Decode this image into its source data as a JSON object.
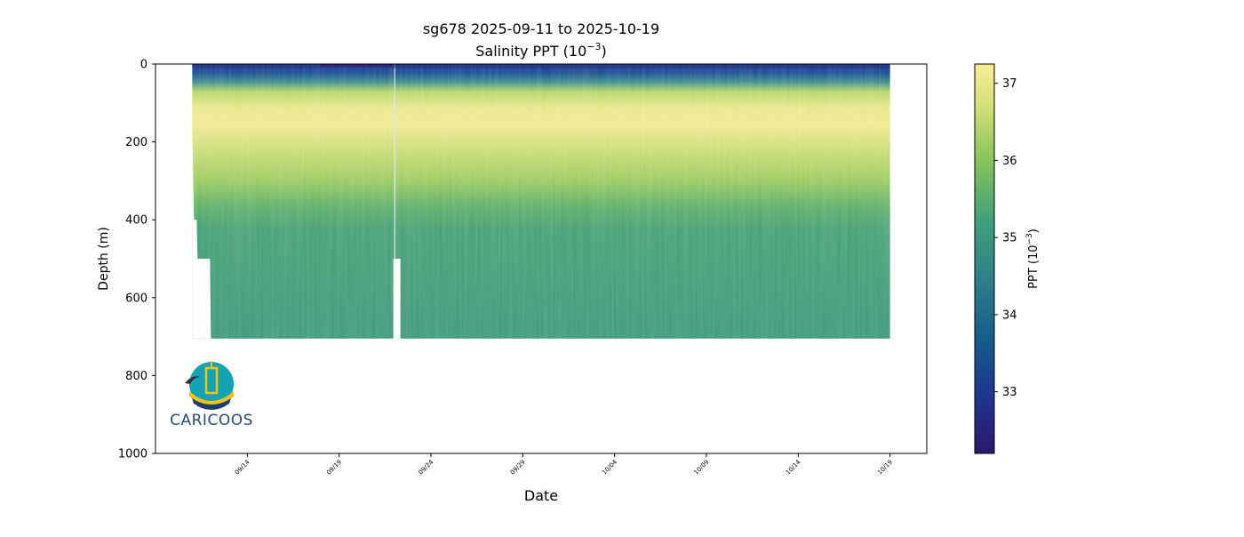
{
  "chart_data": {
    "type": "heatmap",
    "title": "sg678 2025-09-11 to 2025-10-19",
    "subtitle_main": "Salinity PPT (10",
    "subtitle_exp": "−3",
    "subtitle_end": ")",
    "xlabel": "Date",
    "ylabel": "Depth (m)",
    "x_start": "2025-09-09",
    "x_end": "2025-10-21",
    "xticks": [
      "09/14",
      "09/19",
      "09/24",
      "09/29",
      "10/04",
      "10/09",
      "10/14",
      "10/19"
    ],
    "yticks": [
      "0",
      "200",
      "400",
      "600",
      "800",
      "1000"
    ],
    "ylim": [
      1000,
      0
    ],
    "y_inverted": true,
    "colorbar": {
      "label_main": "PPT (10",
      "label_exp": "−3",
      "label_end": ")",
      "range": [
        32.2,
        37.25
      ],
      "ticks": [
        "33",
        "34",
        "35",
        "36",
        "37"
      ],
      "colormap": "haline-like",
      "colors": [
        "#2a186c",
        "#16409a",
        "#0e6a8a",
        "#3c8d8a",
        "#4ea86a",
        "#87c45a",
        "#d6e07a",
        "#f6ec96"
      ]
    },
    "data_extent": {
      "start_date": "2025-09-11",
      "end_date": "2025-10-19",
      "max_depth_m": 705,
      "gap_date": "2025-09-22"
    },
    "salinity_profile": [
      {
        "depth": 0,
        "value": 33.6
      },
      {
        "depth": 30,
        "value": 34.3
      },
      {
        "depth": 60,
        "value": 35.8
      },
      {
        "depth": 100,
        "value": 36.6
      },
      {
        "depth": 150,
        "value": 37.0
      },
      {
        "depth": 200,
        "value": 36.8
      },
      {
        "depth": 300,
        "value": 36.1
      },
      {
        "depth": 400,
        "value": 35.3
      },
      {
        "depth": 500,
        "value": 35.0
      },
      {
        "depth": 600,
        "value": 34.9
      },
      {
        "depth": 700,
        "value": 34.85
      }
    ]
  },
  "logo": {
    "text": "CARICOOS"
  }
}
